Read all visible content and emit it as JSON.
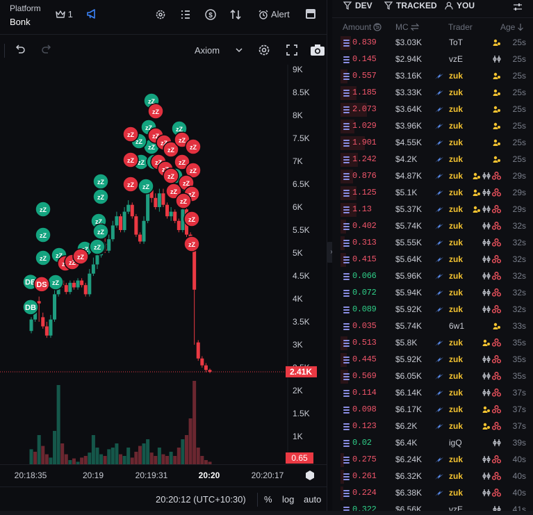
{
  "topbar": {
    "platform_label": "Platform",
    "platform_value": "Bonk",
    "crown_count": "1",
    "alert_label": "Alert",
    "icons": [
      "crown-icon",
      "megaphone-icon",
      "gear-icon",
      "list-icon",
      "dollar-icon",
      "swap-icon",
      "alarm-icon",
      "panel-icon"
    ]
  },
  "chart_toolbar": {
    "provider": "Axiom"
  },
  "chart_data": {
    "type": "candlestick",
    "current_price_label": "2.41K",
    "volume_label": "0.65",
    "y_ticks": [
      "9K",
      "8.5K",
      "8K",
      "7.5K",
      "7K",
      "6.5K",
      "6K",
      "5.5K",
      "5K",
      "4.5K",
      "4K",
      "3.5K",
      "3K",
      "2.5K",
      "2K",
      "1.5K",
      "1K"
    ],
    "ylim": [
      1000,
      9000
    ],
    "x_ticks": [
      {
        "label": "20:18:35",
        "bold": false
      },
      {
        "label": "20:19",
        "bold": false
      },
      {
        "label": "20:19:31",
        "bold": false
      },
      {
        "label": "20:20",
        "bold": true
      },
      {
        "label": "20:20:17",
        "bold": false
      }
    ],
    "candles": [
      [
        3300,
        3550,
        3250,
        3600,
        "up"
      ],
      [
        3550,
        3900,
        3500,
        3950,
        "up"
      ],
      [
        3900,
        3950,
        3500,
        4050,
        "down"
      ],
      [
        3600,
        3400,
        3350,
        3700,
        "down"
      ],
      [
        3400,
        3200,
        3150,
        3500,
        "down"
      ],
      [
        3200,
        3550,
        3150,
        3650,
        "up"
      ],
      [
        3550,
        4100,
        3500,
        4200,
        "up"
      ],
      [
        4100,
        4400,
        4050,
        4450,
        "up"
      ],
      [
        4400,
        4300,
        4250,
        4450,
        "down"
      ],
      [
        4300,
        4150,
        4100,
        4350,
        "down"
      ],
      [
        4150,
        4350,
        4100,
        4400,
        "up"
      ],
      [
        4350,
        4250,
        4200,
        4400,
        "down"
      ],
      [
        4250,
        4400,
        4200,
        4450,
        "up"
      ],
      [
        4400,
        4300,
        4250,
        4450,
        "down"
      ],
      [
        4300,
        4100,
        4050,
        4350,
        "down"
      ],
      [
        4100,
        4550,
        4050,
        4650,
        "up"
      ],
      [
        4550,
        4750,
        4500,
        4900,
        "up"
      ],
      [
        4750,
        4950,
        4650,
        5100,
        "up"
      ],
      [
        4950,
        5200,
        4900,
        5300,
        "up"
      ],
      [
        5200,
        5050,
        5000,
        5350,
        "down"
      ],
      [
        5050,
        5300,
        5000,
        5400,
        "up"
      ],
      [
        5300,
        5600,
        5250,
        5700,
        "up"
      ],
      [
        5600,
        5800,
        5550,
        5900,
        "up"
      ],
      [
        5800,
        5500,
        5450,
        5850,
        "down"
      ],
      [
        5500,
        5900,
        5450,
        6000,
        "up"
      ],
      [
        5900,
        6050,
        5850,
        6150,
        "up"
      ],
      [
        6050,
        5800,
        5750,
        6100,
        "down"
      ],
      [
        5800,
        5400,
        5350,
        5850,
        "down"
      ],
      [
        5400,
        5250,
        5200,
        5450,
        "down"
      ],
      [
        5250,
        5700,
        5200,
        5800,
        "up"
      ],
      [
        5700,
        6400,
        5650,
        6500,
        "up"
      ],
      [
        6400,
        6200,
        6100,
        6500,
        "down"
      ],
      [
        6200,
        6000,
        5950,
        6300,
        "down"
      ],
      [
        6000,
        6300,
        5900,
        6400,
        "up"
      ],
      [
        6300,
        6050,
        6000,
        6400,
        "down"
      ],
      [
        6050,
        5800,
        5750,
        6100,
        "down"
      ],
      [
        5800,
        5900,
        5700,
        6000,
        "up"
      ],
      [
        5900,
        5700,
        5650,
        5950,
        "down"
      ],
      [
        5700,
        5500,
        5450,
        5750,
        "down"
      ],
      [
        5500,
        5950,
        5450,
        6050,
        "up"
      ],
      [
        5950,
        5400,
        5350,
        6000,
        "down"
      ],
      [
        5400,
        5200,
        5100,
        5450,
        "down"
      ],
      [
        5100,
        4200,
        3000,
        5150,
        "down"
      ],
      [
        3050,
        2700,
        2650,
        3100,
        "down"
      ],
      [
        2700,
        2550,
        2500,
        2750,
        "down"
      ],
      [
        2550,
        2450,
        2400,
        2600,
        "down"
      ],
      [
        2450,
        2410,
        2380,
        2480,
        "down"
      ]
    ],
    "volumes": [
      [
        0.18,
        "up"
      ],
      [
        0.15,
        "down"
      ],
      [
        0.35,
        "up"
      ],
      [
        0.22,
        "down"
      ],
      [
        0.12,
        "down"
      ],
      [
        0.08,
        "up"
      ],
      [
        0.4,
        "up"
      ],
      [
        0.95,
        "up"
      ],
      [
        0.25,
        "down"
      ],
      [
        0.12,
        "down"
      ],
      [
        0.05,
        "up"
      ],
      [
        0.07,
        "down"
      ],
      [
        0.03,
        "up"
      ],
      [
        0.08,
        "down"
      ],
      [
        0.1,
        "down"
      ],
      [
        0.14,
        "up"
      ],
      [
        0.35,
        "up"
      ],
      [
        0.2,
        "up"
      ],
      [
        0.12,
        "up"
      ],
      [
        0.1,
        "down"
      ],
      [
        0.18,
        "up"
      ],
      [
        0.2,
        "up"
      ],
      [
        0.25,
        "up"
      ],
      [
        0.12,
        "down"
      ],
      [
        0.1,
        "up"
      ],
      [
        0.2,
        "up"
      ],
      [
        0.08,
        "down"
      ],
      [
        0.15,
        "down"
      ],
      [
        0.22,
        "down"
      ],
      [
        0.25,
        "up"
      ],
      [
        0.3,
        "up"
      ],
      [
        0.14,
        "down"
      ],
      [
        0.1,
        "down"
      ],
      [
        0.2,
        "up"
      ],
      [
        0.12,
        "down"
      ],
      [
        0.1,
        "down"
      ],
      [
        0.15,
        "up"
      ],
      [
        0.1,
        "down"
      ],
      [
        0.2,
        "down"
      ],
      [
        0.3,
        "up"
      ],
      [
        0.35,
        "down"
      ],
      [
        0.55,
        "down"
      ],
      [
        1.0,
        "down"
      ],
      [
        0.2,
        "down"
      ],
      [
        0.1,
        "down"
      ],
      [
        0.05,
        "down"
      ],
      [
        0.03,
        "down"
      ]
    ],
    "markers": [
      {
        "label": "DB",
        "color": "green",
        "t": 2,
        "price": 3850
      },
      {
        "label": "DB",
        "color": "green",
        "t": 2,
        "price": 4400
      },
      {
        "label": "DS",
        "color": "red",
        "t": 4,
        "price": 4350
      }
    ]
  },
  "timebar": {
    "time": "20:20:12 (UTC+10:30)",
    "percent": "%",
    "log": "log",
    "auto": "auto"
  },
  "filters": {
    "dev": "DEV",
    "tracked": "TRACKED",
    "you": "YOU"
  },
  "columns": {
    "amount": "Amount",
    "mc": "MC",
    "trader": "Trader",
    "age": "Age"
  },
  "trades": [
    {
      "amount": "0.839",
      "side": "sell",
      "bar": 0.3,
      "mc": "$3.03K",
      "bolt": false,
      "trader": "ToT",
      "gold": false,
      "badges": [
        "crowd"
      ],
      "age": "25s"
    },
    {
      "amount": "0.145",
      "side": "sell",
      "bar": 0.0,
      "mc": "$2.94K",
      "bolt": false,
      "trader": "vzE",
      "gold": false,
      "badges": [
        "cluster"
      ],
      "age": "25s"
    },
    {
      "amount": "0.557",
      "side": "sell",
      "bar": 0.2,
      "mc": "$3.16K",
      "bolt": true,
      "trader": "zuk",
      "gold": true,
      "badges": [
        "crowd"
      ],
      "age": "25s"
    },
    {
      "amount": "1.185",
      "side": "sell",
      "bar": 0.45,
      "mc": "$3.33K",
      "bolt": true,
      "trader": "zuk",
      "gold": true,
      "badges": [
        "crowd"
      ],
      "age": "25s"
    },
    {
      "amount": "2.073",
      "side": "sell",
      "bar": 0.75,
      "mc": "$3.64K",
      "bolt": true,
      "trader": "zuk",
      "gold": true,
      "badges": [
        "crowd"
      ],
      "age": "25s"
    },
    {
      "amount": "1.029",
      "side": "sell",
      "bar": 0.4,
      "mc": "$3.96K",
      "bolt": true,
      "trader": "zuk",
      "gold": true,
      "badges": [
        "crowd"
      ],
      "age": "25s"
    },
    {
      "amount": "1.901",
      "side": "sell",
      "bar": 0.7,
      "mc": "$4.55K",
      "bolt": true,
      "trader": "zuk",
      "gold": true,
      "badges": [
        "crowd"
      ],
      "age": "25s"
    },
    {
      "amount": "1.242",
      "side": "sell",
      "bar": 0.5,
      "mc": "$4.2K",
      "bolt": true,
      "trader": "zuk",
      "gold": true,
      "badges": [
        "crowd"
      ],
      "age": "25s"
    },
    {
      "amount": "0.876",
      "side": "sell",
      "bar": 0.35,
      "mc": "$4.87K",
      "bolt": true,
      "trader": "zuk",
      "gold": true,
      "badges": [
        "crowd",
        "cluster",
        "triad"
      ],
      "age": "29s"
    },
    {
      "amount": "1.125",
      "side": "sell",
      "bar": 0.45,
      "mc": "$5.1K",
      "bolt": true,
      "trader": "zuk",
      "gold": true,
      "badges": [
        "crowd",
        "cluster",
        "triad"
      ],
      "age": "29s"
    },
    {
      "amount": "1.13",
      "side": "sell",
      "bar": 0.45,
      "mc": "$5.37K",
      "bolt": true,
      "trader": "zuk",
      "gold": true,
      "badges": [
        "crowd",
        "cluster",
        "triad"
      ],
      "age": "29s"
    },
    {
      "amount": "0.402",
      "side": "sell",
      "bar": 0.15,
      "mc": "$5.74K",
      "bolt": true,
      "trader": "zuk",
      "gold": true,
      "badges": [
        "cluster",
        "triad"
      ],
      "age": "32s"
    },
    {
      "amount": "0.313",
      "side": "sell",
      "bar": 0.12,
      "mc": "$5.55K",
      "bolt": true,
      "trader": "zuk",
      "gold": true,
      "badges": [
        "cluster",
        "triad"
      ],
      "age": "32s"
    },
    {
      "amount": "0.415",
      "side": "sell",
      "bar": 0.15,
      "mc": "$5.64K",
      "bolt": true,
      "trader": "zuk",
      "gold": true,
      "badges": [
        "cluster",
        "triad"
      ],
      "age": "32s"
    },
    {
      "amount": "0.066",
      "side": "buy",
      "bar": 0.0,
      "mc": "$5.96K",
      "bolt": true,
      "trader": "zuk",
      "gold": true,
      "badges": [
        "cluster",
        "triad"
      ],
      "age": "32s"
    },
    {
      "amount": "0.072",
      "side": "buy",
      "bar": 0.0,
      "mc": "$5.94K",
      "bolt": true,
      "trader": "zuk",
      "gold": true,
      "badges": [
        "cluster",
        "triad"
      ],
      "age": "32s"
    },
    {
      "amount": "0.089",
      "side": "buy",
      "bar": 0.0,
      "mc": "$5.92K",
      "bolt": true,
      "trader": "zuk",
      "gold": true,
      "badges": [
        "cluster",
        "triad"
      ],
      "age": "32s"
    },
    {
      "amount": "0.035",
      "side": "sell",
      "bar": 0.0,
      "mc": "$5.74K",
      "bolt": false,
      "trader": "6w1",
      "gold": false,
      "badges": [
        "crowd"
      ],
      "age": "33s"
    },
    {
      "amount": "0.513",
      "side": "sell",
      "bar": 0.2,
      "mc": "$5.8K",
      "bolt": true,
      "trader": "zuk",
      "gold": true,
      "badges": [
        "crowd",
        "triad"
      ],
      "age": "35s"
    },
    {
      "amount": "0.445",
      "side": "sell",
      "bar": 0.17,
      "mc": "$5.92K",
      "bolt": true,
      "trader": "zuk",
      "gold": true,
      "badges": [
        "cluster",
        "triad"
      ],
      "age": "35s"
    },
    {
      "amount": "0.569",
      "side": "sell",
      "bar": 0.22,
      "mc": "$6.05K",
      "bolt": true,
      "trader": "zuk",
      "gold": true,
      "badges": [
        "cluster",
        "triad"
      ],
      "age": "35s"
    },
    {
      "amount": "0.114",
      "side": "sell",
      "bar": 0.0,
      "mc": "$6.14K",
      "bolt": true,
      "trader": "zuk",
      "gold": true,
      "badges": [
        "cluster",
        "triad"
      ],
      "age": "37s"
    },
    {
      "amount": "0.098",
      "side": "sell",
      "bar": 0.0,
      "mc": "$6.17K",
      "bolt": true,
      "trader": "zuk",
      "gold": true,
      "badges": [
        "crowd",
        "triad"
      ],
      "age": "37s"
    },
    {
      "amount": "0.123",
      "side": "sell",
      "bar": 0.0,
      "mc": "$6.2K",
      "bolt": true,
      "trader": "zuk",
      "gold": true,
      "badges": [
        "crowd",
        "triad"
      ],
      "age": "37s"
    },
    {
      "amount": "0.02",
      "side": "buy",
      "bar": 0.0,
      "mc": "$6.4K",
      "bolt": false,
      "trader": "igQ",
      "gold": false,
      "badges": [
        "cluster"
      ],
      "age": "39s"
    },
    {
      "amount": "0.275",
      "side": "sell",
      "bar": 0.1,
      "mc": "$6.24K",
      "bolt": true,
      "trader": "zuk",
      "gold": true,
      "badges": [
        "cluster",
        "triad"
      ],
      "age": "40s"
    },
    {
      "amount": "0.261",
      "side": "sell",
      "bar": 0.1,
      "mc": "$6.32K",
      "bolt": true,
      "trader": "zuk",
      "gold": true,
      "badges": [
        "cluster",
        "triad"
      ],
      "age": "40s"
    },
    {
      "amount": "0.224",
      "side": "sell",
      "bar": 0.08,
      "mc": "$6.38K",
      "bolt": true,
      "trader": "zuk",
      "gold": true,
      "badges": [
        "cluster",
        "triad"
      ],
      "age": "40s"
    },
    {
      "amount": "0.322",
      "side": "buy",
      "bar": 0.0,
      "mc": "$6.56K",
      "bolt": false,
      "trader": "vzE",
      "gold": false,
      "badges": [
        "cluster"
      ],
      "age": "41s"
    }
  ],
  "colors": {
    "up": "#1f9d80",
    "down": "#ea3943",
    "up_vol": "#15574a",
    "down_vol": "#6b2730",
    "gold": "#f2c230",
    "badge_red": "#e8505b"
  }
}
